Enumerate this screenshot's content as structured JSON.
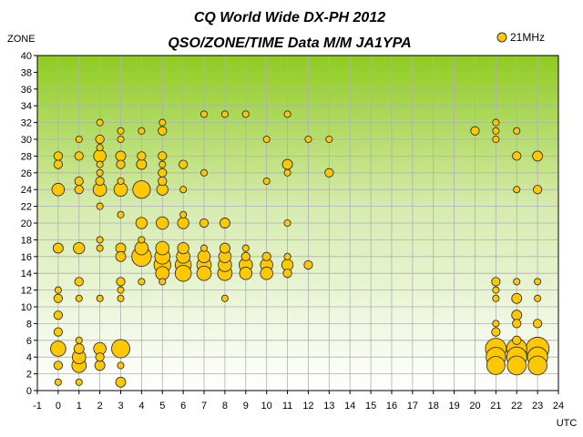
{
  "chart_data": {
    "type": "scatter",
    "title": "CQ World Wide DX-PH 2012",
    "subtitle": "QSO/ZONE/TIME Data M/M JA1YPA",
    "xlabel": "UTC",
    "ylabel": "ZONE",
    "xlim": [
      -1,
      24
    ],
    "ylim": [
      0,
      40
    ],
    "x_ticks": [
      "-1",
      "0",
      "1",
      "2",
      "3",
      "4",
      "5",
      "6",
      "7",
      "8",
      "9",
      "10",
      "11",
      "12",
      "13",
      "14",
      "15",
      "16",
      "17",
      "18",
      "19",
      "20",
      "21",
      "22",
      "23",
      "24"
    ],
    "y_ticks": [
      "0",
      "2",
      "4",
      "6",
      "8",
      "10",
      "12",
      "14",
      "16",
      "18",
      "20",
      "22",
      "24",
      "26",
      "28",
      "30",
      "32",
      "34",
      "36",
      "38",
      "40"
    ],
    "grid": true,
    "legend_position": "top-right",
    "bubble_color": "#ffc800",
    "bubble_stroke": "#333333",
    "series": [
      {
        "name": "21MHz",
        "points": [
          {
            "x": 0,
            "y": 28,
            "size": 2
          },
          {
            "x": 0,
            "y": 27,
            "size": 2
          },
          {
            "x": 0,
            "y": 24,
            "size": 5
          },
          {
            "x": 0,
            "y": 17,
            "size": 3
          },
          {
            "x": 0,
            "y": 12,
            "size": 1
          },
          {
            "x": 0,
            "y": 11,
            "size": 2
          },
          {
            "x": 0,
            "y": 9,
            "size": 2
          },
          {
            "x": 0,
            "y": 7,
            "size": 2
          },
          {
            "x": 0,
            "y": 5,
            "size": 8
          },
          {
            "x": 0,
            "y": 3,
            "size": 2
          },
          {
            "x": 0,
            "y": 1,
            "size": 1
          },
          {
            "x": 1,
            "y": 30,
            "size": 1
          },
          {
            "x": 1,
            "y": 28,
            "size": 2
          },
          {
            "x": 1,
            "y": 25,
            "size": 2
          },
          {
            "x": 1,
            "y": 24,
            "size": 2
          },
          {
            "x": 1,
            "y": 17,
            "size": 4
          },
          {
            "x": 1,
            "y": 13,
            "size": 2
          },
          {
            "x": 1,
            "y": 11,
            "size": 1
          },
          {
            "x": 1,
            "y": 6,
            "size": 1
          },
          {
            "x": 1,
            "y": 5,
            "size": 3
          },
          {
            "x": 1,
            "y": 4,
            "size": 6
          },
          {
            "x": 1,
            "y": 3,
            "size": 7
          },
          {
            "x": 1,
            "y": 1,
            "size": 1
          },
          {
            "x": 2,
            "y": 32,
            "size": 1
          },
          {
            "x": 2,
            "y": 30,
            "size": 2
          },
          {
            "x": 2,
            "y": 29,
            "size": 1
          },
          {
            "x": 2,
            "y": 28,
            "size": 5
          },
          {
            "x": 2,
            "y": 27,
            "size": 1
          },
          {
            "x": 2,
            "y": 26,
            "size": 1
          },
          {
            "x": 2,
            "y": 25,
            "size": 2
          },
          {
            "x": 2,
            "y": 24,
            "size": 6
          },
          {
            "x": 2,
            "y": 22,
            "size": 1
          },
          {
            "x": 2,
            "y": 18,
            "size": 1
          },
          {
            "x": 2,
            "y": 17,
            "size": 1
          },
          {
            "x": 2,
            "y": 11,
            "size": 1
          },
          {
            "x": 2,
            "y": 5,
            "size": 5
          },
          {
            "x": 2,
            "y": 4,
            "size": 2
          },
          {
            "x": 2,
            "y": 3,
            "size": 3
          },
          {
            "x": 3,
            "y": 31,
            "size": 1
          },
          {
            "x": 3,
            "y": 30,
            "size": 1
          },
          {
            "x": 3,
            "y": 28,
            "size": 3
          },
          {
            "x": 3,
            "y": 27,
            "size": 2
          },
          {
            "x": 3,
            "y": 25,
            "size": 1
          },
          {
            "x": 3,
            "y": 24,
            "size": 6
          },
          {
            "x": 3,
            "y": 21,
            "size": 1
          },
          {
            "x": 3,
            "y": 17,
            "size": 3
          },
          {
            "x": 3,
            "y": 16,
            "size": 3
          },
          {
            "x": 3,
            "y": 13,
            "size": 2
          },
          {
            "x": 3,
            "y": 12,
            "size": 1
          },
          {
            "x": 3,
            "y": 11,
            "size": 1
          },
          {
            "x": 3,
            "y": 5,
            "size": 12
          },
          {
            "x": 3,
            "y": 3,
            "size": 1
          },
          {
            "x": 3,
            "y": 1,
            "size": 3
          },
          {
            "x": 4,
            "y": 31,
            "size": 1
          },
          {
            "x": 4,
            "y": 28,
            "size": 2
          },
          {
            "x": 4,
            "y": 27,
            "size": 3
          },
          {
            "x": 4,
            "y": 24,
            "size": 11
          },
          {
            "x": 4,
            "y": 20,
            "size": 4
          },
          {
            "x": 4,
            "y": 18,
            "size": 1
          },
          {
            "x": 4,
            "y": 17,
            "size": 6
          },
          {
            "x": 4,
            "y": 16,
            "size": 14
          },
          {
            "x": 4,
            "y": 13,
            "size": 1
          },
          {
            "x": 5,
            "y": 32,
            "size": 1
          },
          {
            "x": 5,
            "y": 31,
            "size": 2
          },
          {
            "x": 5,
            "y": 28,
            "size": 2
          },
          {
            "x": 5,
            "y": 27,
            "size": 1
          },
          {
            "x": 5,
            "y": 26,
            "size": 2
          },
          {
            "x": 5,
            "y": 25,
            "size": 2
          },
          {
            "x": 5,
            "y": 24,
            "size": 4
          },
          {
            "x": 5,
            "y": 20,
            "size": 5
          },
          {
            "x": 5,
            "y": 17,
            "size": 6
          },
          {
            "x": 5,
            "y": 16,
            "size": 8
          },
          {
            "x": 5,
            "y": 15,
            "size": 10
          },
          {
            "x": 5,
            "y": 14,
            "size": 6
          },
          {
            "x": 5,
            "y": 13,
            "size": 1
          },
          {
            "x": 6,
            "y": 27,
            "size": 2
          },
          {
            "x": 6,
            "y": 24,
            "size": 1
          },
          {
            "x": 6,
            "y": 21,
            "size": 1
          },
          {
            "x": 6,
            "y": 20,
            "size": 4
          },
          {
            "x": 6,
            "y": 17,
            "size": 4
          },
          {
            "x": 6,
            "y": 16,
            "size": 6
          },
          {
            "x": 6,
            "y": 15,
            "size": 9
          },
          {
            "x": 6,
            "y": 14,
            "size": 9
          },
          {
            "x": 7,
            "y": 33,
            "size": 1
          },
          {
            "x": 7,
            "y": 26,
            "size": 1
          },
          {
            "x": 7,
            "y": 20,
            "size": 2
          },
          {
            "x": 7,
            "y": 17,
            "size": 1
          },
          {
            "x": 7,
            "y": 16,
            "size": 5
          },
          {
            "x": 7,
            "y": 15,
            "size": 7
          },
          {
            "x": 7,
            "y": 14,
            "size": 7
          },
          {
            "x": 8,
            "y": 33,
            "size": 1
          },
          {
            "x": 8,
            "y": 20,
            "size": 3
          },
          {
            "x": 8,
            "y": 17,
            "size": 3
          },
          {
            "x": 8,
            "y": 16,
            "size": 5
          },
          {
            "x": 8,
            "y": 15,
            "size": 6
          },
          {
            "x": 8,
            "y": 14,
            "size": 7
          },
          {
            "x": 8,
            "y": 11,
            "size": 1
          },
          {
            "x": 9,
            "y": 33,
            "size": 1
          },
          {
            "x": 9,
            "y": 17,
            "size": 1
          },
          {
            "x": 9,
            "y": 16,
            "size": 2
          },
          {
            "x": 9,
            "y": 15,
            "size": 6
          },
          {
            "x": 9,
            "y": 14,
            "size": 5
          },
          {
            "x": 10,
            "y": 30,
            "size": 1
          },
          {
            "x": 10,
            "y": 25,
            "size": 1
          },
          {
            "x": 10,
            "y": 16,
            "size": 2
          },
          {
            "x": 10,
            "y": 15,
            "size": 5
          },
          {
            "x": 10,
            "y": 14,
            "size": 5
          },
          {
            "x": 11,
            "y": 33,
            "size": 1
          },
          {
            "x": 11,
            "y": 27,
            "size": 3
          },
          {
            "x": 11,
            "y": 26,
            "size": 1
          },
          {
            "x": 11,
            "y": 20,
            "size": 1
          },
          {
            "x": 11,
            "y": 16,
            "size": 1
          },
          {
            "x": 11,
            "y": 15,
            "size": 4
          },
          {
            "x": 11,
            "y": 14,
            "size": 2
          },
          {
            "x": 12,
            "y": 30,
            "size": 1
          },
          {
            "x": 12,
            "y": 15,
            "size": 2
          },
          {
            "x": 13,
            "y": 30,
            "size": 1
          },
          {
            "x": 13,
            "y": 26,
            "size": 2
          },
          {
            "x": 20,
            "y": 31,
            "size": 2
          },
          {
            "x": 21,
            "y": 32,
            "size": 1
          },
          {
            "x": 21,
            "y": 31,
            "size": 1
          },
          {
            "x": 21,
            "y": 30,
            "size": 1
          },
          {
            "x": 21,
            "y": 13,
            "size": 2
          },
          {
            "x": 21,
            "y": 12,
            "size": 1
          },
          {
            "x": 21,
            "y": 11,
            "size": 1
          },
          {
            "x": 21,
            "y": 8,
            "size": 1
          },
          {
            "x": 21,
            "y": 7,
            "size": 2
          },
          {
            "x": 21,
            "y": 5,
            "size": 16
          },
          {
            "x": 21,
            "y": 4,
            "size": 14
          },
          {
            "x": 21,
            "y": 3,
            "size": 12
          },
          {
            "x": 22,
            "y": 31,
            "size": 1
          },
          {
            "x": 22,
            "y": 28,
            "size": 2
          },
          {
            "x": 22,
            "y": 24,
            "size": 1
          },
          {
            "x": 22,
            "y": 13,
            "size": 1
          },
          {
            "x": 22,
            "y": 11,
            "size": 3
          },
          {
            "x": 22,
            "y": 9,
            "size": 3
          },
          {
            "x": 22,
            "y": 8,
            "size": 2
          },
          {
            "x": 22,
            "y": 6,
            "size": 2
          },
          {
            "x": 22,
            "y": 5,
            "size": 15
          },
          {
            "x": 22,
            "y": 4,
            "size": 15
          },
          {
            "x": 22,
            "y": 3,
            "size": 13
          },
          {
            "x": 23,
            "y": 28,
            "size": 3
          },
          {
            "x": 23,
            "y": 24,
            "size": 2
          },
          {
            "x": 23,
            "y": 13,
            "size": 1
          },
          {
            "x": 23,
            "y": 11,
            "size": 1
          },
          {
            "x": 23,
            "y": 8,
            "size": 2
          },
          {
            "x": 23,
            "y": 5,
            "size": 20
          },
          {
            "x": 23,
            "y": 4,
            "size": 15
          },
          {
            "x": 23,
            "y": 3,
            "size": 13
          }
        ]
      }
    ]
  }
}
